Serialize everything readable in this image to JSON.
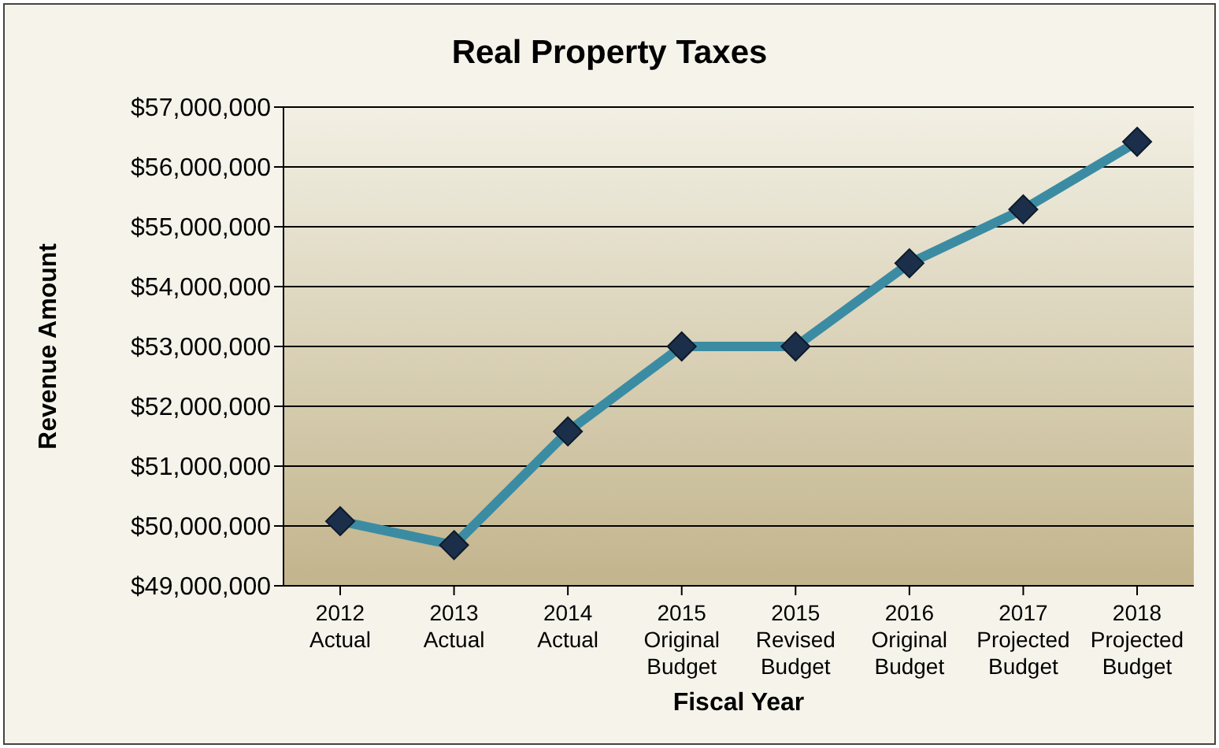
{
  "chart_data": {
    "type": "line",
    "title": "Real Property Taxes",
    "xlabel": "Fiscal Year",
    "ylabel": "Revenue Amount",
    "categories": [
      "2012\nActual",
      "2013\nActual",
      "2014\nActual",
      "2015\nOriginal\nBudget",
      "2015\nRevised\nBudget",
      "2016\nOriginal\nBudget",
      "2017\nProjected\nBudget",
      "2018\nProjected\nBudget"
    ],
    "series": [
      {
        "color": "#3b8ca3",
        "values": [
          50080000,
          49680000,
          51580000,
          53000000,
          53000000,
          54390000,
          55290000,
          56420000
        ]
      }
    ],
    "ylim": [
      49000000,
      57000000
    ],
    "yticks": [
      {
        "value": 49000000,
        "label": "$49,000,000"
      },
      {
        "value": 50000000,
        "label": "$50,000,000"
      },
      {
        "value": 51000000,
        "label": "$51,000,000"
      },
      {
        "value": 52000000,
        "label": "$52,000,000"
      },
      {
        "value": 53000000,
        "label": "$53,000,000"
      },
      {
        "value": 54000000,
        "label": "$54,000,000"
      },
      {
        "value": 55000000,
        "label": "$55,000,000"
      },
      {
        "value": 56000000,
        "label": "$56,000,000"
      },
      {
        "value": 57000000,
        "label": "$57,000,000"
      }
    ],
    "grid": "y",
    "legend": false,
    "marker": "diamond",
    "line_style": "solid"
  }
}
